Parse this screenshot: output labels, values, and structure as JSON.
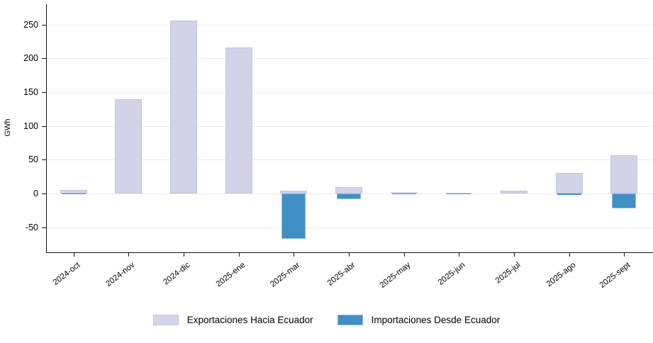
{
  "chart_data": {
    "type": "bar",
    "title": "",
    "xlabel": "",
    "ylabel": "GWh",
    "categories": [
      "2024-oct",
      "2024-nov",
      "2024-dic",
      "2025-ene",
      "2025-mar",
      "2025-abr",
      "2025-may",
      "2025-jun",
      "2025-jul",
      "2025-ago",
      "2025-sept"
    ],
    "series": [
      {
        "name": "Exportaciones Hacia Ecuador",
        "color": "#d2d3e8",
        "border_color": "#c2c5e0",
        "values": [
          5,
          140,
          256,
          216,
          4,
          10,
          2,
          1,
          4,
          30,
          57
        ]
      },
      {
        "name": "Importaciones Desde Ecuador",
        "color": "#4190c5",
        "border_color": "#8cbadd",
        "values": [
          -1,
          0,
          0,
          0,
          -67,
          -8,
          -1,
          -1,
          0,
          -2,
          -22
        ]
      }
    ],
    "yticks": [
      -50,
      0,
      50,
      100,
      150,
      200,
      250
    ],
    "ylim": [
      -87,
      278
    ],
    "grid": true,
    "grid_color": "#ececf2",
    "axis_color": "#141414",
    "legend_position": "bottom",
    "bar_baseline": "zero"
  }
}
